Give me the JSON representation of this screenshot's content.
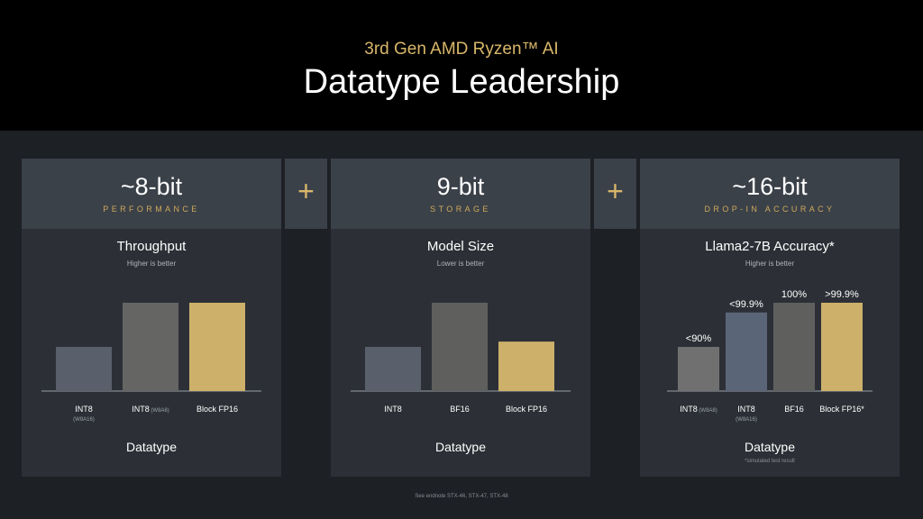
{
  "header": {
    "subtitle": "3rd Gen AMD Ryzen™ AI",
    "title": "Datatype Leadership"
  },
  "plus_sign": "+",
  "panels": [
    {
      "bits": "~8-bit",
      "tag": "PERFORMANCE",
      "chart_title": "Throughput",
      "chart_subtitle": "Higher is better",
      "xlabel": "Datatype",
      "footnote": ""
    },
    {
      "bits": "9-bit",
      "tag": "STORAGE",
      "chart_title": "Model Size",
      "chart_subtitle": "Lower is better",
      "xlabel": "Datatype",
      "footnote": ""
    },
    {
      "bits": "~16-bit",
      "tag": "DROP-IN ACCURACY",
      "chart_title": "Llama2-7B Accuracy*",
      "chart_subtitle": "Higher is better",
      "xlabel": "Datatype",
      "footnote": "*simulated test result"
    }
  ],
  "endnote": "See endnote STX-46, STX-47, STX-48",
  "colors": {
    "int8": "#59606c",
    "int8_w8a8": "#656563",
    "bf16": "#5f5f5d",
    "block_fp16": "#cdb06a",
    "int8_third": "#707070",
    "int8_w8a16": "#5b6578"
  },
  "chart_data": [
    {
      "type": "bar",
      "title": "Throughput",
      "subtitle": "Higher is better",
      "xlabel": "Datatype",
      "ylabel": "",
      "ylim": [
        0,
        100
      ],
      "categories": [
        {
          "label": "INT8",
          "sub": "(W8A16)",
          "inline": false
        },
        {
          "label": "INT8",
          "sub": "(W8A8)",
          "inline": true
        },
        {
          "label": "Block FP16",
          "sub": "",
          "inline": false
        }
      ],
      "values": [
        50,
        100,
        100
      ],
      "colors": [
        "#59606c",
        "#656563",
        "#cdb06a"
      ],
      "value_labels": []
    },
    {
      "type": "bar",
      "title": "Model Size",
      "subtitle": "Lower is better",
      "xlabel": "Datatype",
      "ylabel": "",
      "ylim": [
        0,
        100
      ],
      "categories": [
        {
          "label": "INT8",
          "sub": "",
          "inline": false
        },
        {
          "label": "BF16",
          "sub": "",
          "inline": false
        },
        {
          "label": "Block FP16",
          "sub": "",
          "inline": false
        }
      ],
      "values": [
        50,
        100,
        56
      ],
      "colors": [
        "#59606c",
        "#5f5f5d",
        "#cdb06a"
      ],
      "value_labels": []
    },
    {
      "type": "bar",
      "title": "Llama2-7B Accuracy*",
      "subtitle": "Higher is better",
      "xlabel": "Datatype",
      "ylabel": "",
      "ylim": [
        0,
        100
      ],
      "categories": [
        {
          "label": "INT8",
          "sub": "(W8A8)",
          "inline": true
        },
        {
          "label": "INT8",
          "sub": "(W8A16)",
          "inline": false
        },
        {
          "label": "BF16",
          "sub": "",
          "inline": false
        },
        {
          "label": "Block FP16*",
          "sub": "",
          "inline": false
        }
      ],
      "values": [
        50,
        89,
        100,
        100
      ],
      "colors": [
        "#707070",
        "#5b6578",
        "#5f5f5d",
        "#cdb06a"
      ],
      "value_labels": [
        "<90%",
        "<99.9%",
        "100%",
        ">99.9%"
      ]
    }
  ]
}
